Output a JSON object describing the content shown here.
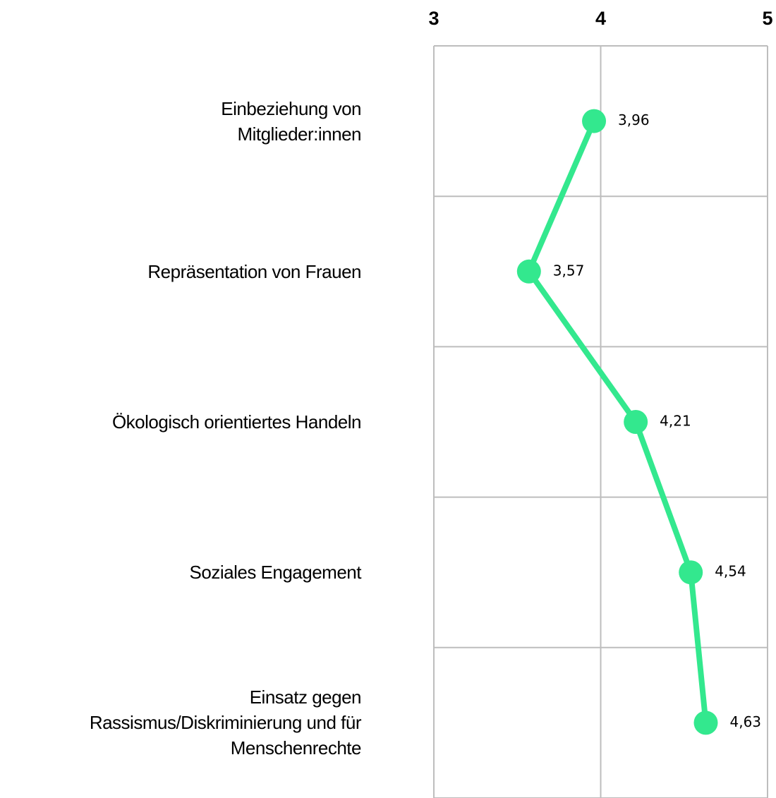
{
  "chart_data": {
    "type": "line",
    "orientation": "horizontal",
    "categories": [
      "Einbeziehung von\nMitglieder:innen",
      "Repräsentation von Frauen",
      "Ökologisch orientiertes Handeln",
      "Soziales Engagement",
      "Einsatz gegen\nRassismus/Diskriminierung und für\nMenschenrechte"
    ],
    "values": [
      3.96,
      3.57,
      4.21,
      4.54,
      4.63
    ],
    "value_labels": [
      "3,96",
      "3,57",
      "4,21",
      "4,54",
      "4,63"
    ],
    "color": "#33e88e",
    "xlim": [
      3,
      5
    ],
    "xticks": [
      3,
      4,
      5
    ],
    "grid": true
  }
}
